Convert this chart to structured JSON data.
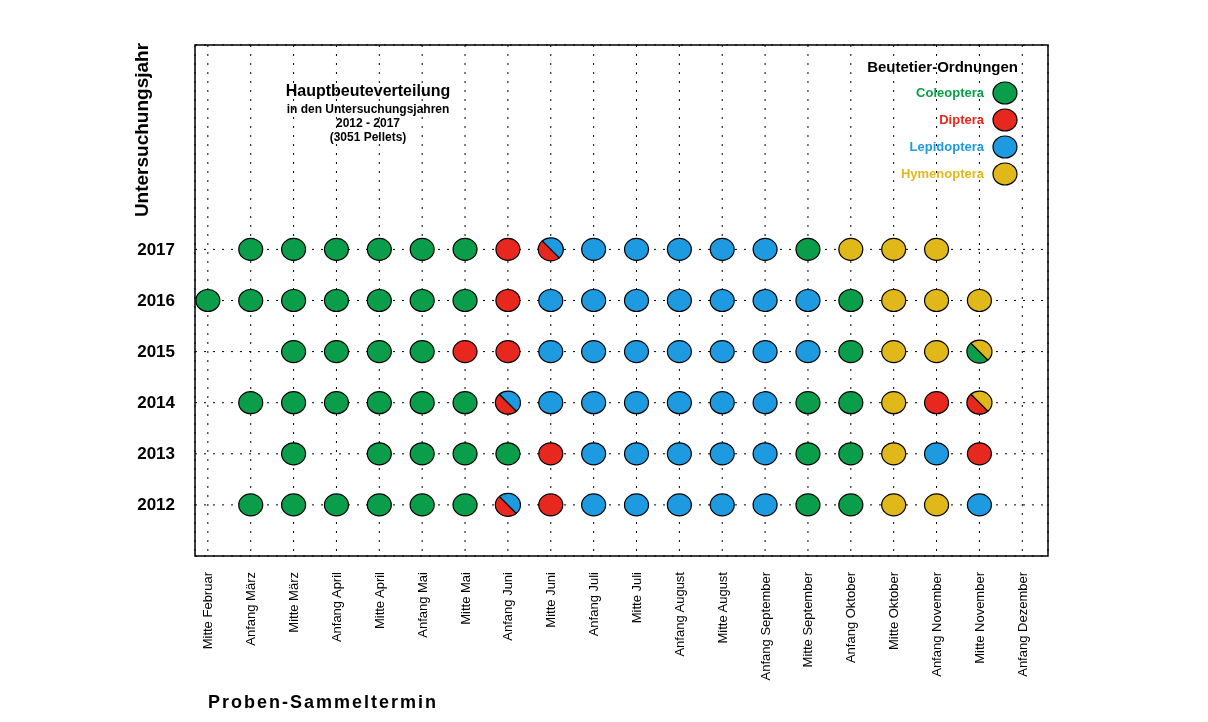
{
  "chart_data": {
    "type": "scatter",
    "title": "Hauptbeuteverteilung",
    "annotations": [
      "in den Untersuchungsjahren",
      "2012 - 2017",
      "(3051 Pellets)"
    ],
    "xlabel": "Proben-Sammeltermin",
    "ylabel": "Untersuchungsjahr",
    "legend_title": "Beutetier-Ordnungen",
    "legend": "top right",
    "grid": true,
    "marker": "circle",
    "categories": [
      "Mitte Februar",
      "Anfang März",
      "Mitte März",
      "Anfang April",
      "Mitte April",
      "Anfang Mai",
      "Mitte Mai",
      "Anfang Juni",
      "Mitte Juni",
      "Anfang Juli",
      "Mitte Juli",
      "Anfang August",
      "Mitte August",
      "Anfang September",
      "Mitte September",
      "Anfang Oktober",
      "Mitte Oktober",
      "Anfang November",
      "Mitte November",
      "Anfang Dezember"
    ],
    "ylim": [
      2011,
      2021
    ],
    "yticks": [
      2012,
      2013,
      2014,
      2015,
      2016,
      2017
    ],
    "series": [
      {
        "name": "Coleoptera",
        "color": "#0a9e4a",
        "x": [
          "Anfang März",
          "Mitte März",
          "Anfang April",
          "Mitte April",
          "Anfang Mai",
          "Mitte Mai",
          "Mitte September",
          "Mitte Februar",
          "Anfang März",
          "Mitte März",
          "Anfang April",
          "Mitte April",
          "Anfang Mai",
          "Mitte Mai",
          "Anfang Oktober",
          "Mitte März",
          "Anfang April",
          "Mitte April",
          "Anfang Mai",
          "Anfang Oktober",
          "Mitte November",
          "Anfang März",
          "Mitte März",
          "Anfang April",
          "Mitte April",
          "Anfang Mai",
          "Mitte Mai",
          "Mitte September",
          "Anfang Oktober",
          "Mitte März",
          "Mitte April",
          "Anfang Mai",
          "Mitte Mai",
          "Anfang Juni",
          "Mitte September",
          "Anfang Oktober",
          "Anfang März",
          "Mitte März",
          "Anfang April",
          "Mitte April",
          "Anfang Mai",
          "Mitte Mai",
          "Mitte September",
          "Anfang Oktober"
        ],
        "values": [
          2017,
          2017,
          2017,
          2017,
          2017,
          2017,
          2017,
          2016,
          2016,
          2016,
          2016,
          2016,
          2016,
          2016,
          2016,
          2015,
          2015,
          2015,
          2015,
          2015,
          2015,
          2014,
          2014,
          2014,
          2014,
          2014,
          2014,
          2014,
          2014,
          2013,
          2013,
          2013,
          2013,
          2013,
          2013,
          2013,
          2012,
          2012,
          2012,
          2012,
          2012,
          2012,
          2012,
          2012
        ]
      },
      {
        "name": "Diptera",
        "color": "#e8281e",
        "x": [
          "Anfang Juni",
          "Mitte Juni",
          "Anfang Juni",
          "Mitte Mai",
          "Anfang Juni",
          "Anfang Juni",
          "Anfang November",
          "Mitte November",
          "Mitte Juni",
          "Mitte November",
          "Anfang Juni",
          "Mitte Juni"
        ],
        "values": [
          2017,
          2017,
          2016,
          2015,
          2015,
          2014,
          2014,
          2014,
          2013,
          2013,
          2012,
          2012
        ]
      },
      {
        "name": "Lepidoptera",
        "color": "#1e9be0",
        "x": [
          "Mitte Juni",
          "Anfang Juli",
          "Mitte Juli",
          "Anfang August",
          "Mitte August",
          "Anfang September",
          "Mitte Juni",
          "Anfang Juli",
          "Mitte Juli",
          "Anfang August",
          "Mitte August",
          "Anfang September",
          "Mitte September",
          "Mitte Juni",
          "Anfang Juli",
          "Mitte Juli",
          "Anfang August",
          "Mitte August",
          "Anfang September",
          "Mitte September",
          "Anfang Juni",
          "Mitte Juni",
          "Anfang Juli",
          "Mitte Juli",
          "Anfang August",
          "Mitte August",
          "Anfang September",
          "Anfang Juli",
          "Mitte Juli",
          "Anfang August",
          "Mitte August",
          "Anfang September",
          "Anfang November",
          "Anfang Juni",
          "Anfang Juli",
          "Mitte Juli",
          "Anfang August",
          "Mitte August",
          "Anfang September",
          "Mitte November"
        ],
        "values": [
          2017,
          2017,
          2017,
          2017,
          2017,
          2017,
          2016,
          2016,
          2016,
          2016,
          2016,
          2016,
          2016,
          2015,
          2015,
          2015,
          2015,
          2015,
          2015,
          2015,
          2014,
          2014,
          2014,
          2014,
          2014,
          2014,
          2014,
          2013,
          2013,
          2013,
          2013,
          2013,
          2013,
          2012,
          2012,
          2012,
          2012,
          2012,
          2012,
          2012
        ]
      },
      {
        "name": "Hymenoptera",
        "color": "#e0b81a",
        "x": [
          "Anfang Oktober",
          "Mitte Oktober",
          "Anfang November",
          "Mitte Oktober",
          "Anfang November",
          "Mitte November",
          "Mitte Oktober",
          "Anfang November",
          "Mitte November",
          "Mitte Oktober",
          "Mitte November",
          "Mitte Oktober",
          "Mitte Oktober",
          "Anfang November"
        ],
        "values": [
          2017,
          2017,
          2017,
          2016,
          2016,
          2016,
          2015,
          2015,
          2015,
          2014,
          2014,
          2013,
          2012,
          2012
        ]
      }
    ]
  }
}
